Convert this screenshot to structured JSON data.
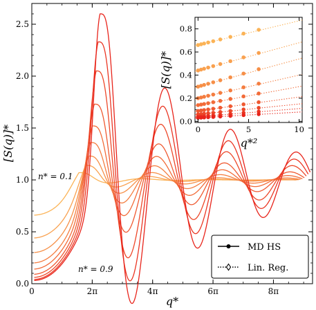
{
  "chart_data": [
    {
      "type": "line",
      "xlabel": "q*",
      "ylabel": "[S(q)]*",
      "xlim": [
        0,
        29.2
      ],
      "ylim": [
        0,
        2.7
      ],
      "xticks": [
        {
          "value": 0,
          "label": "0"
        },
        {
          "value": 6.2832,
          "label": "2π"
        },
        {
          "value": 12.5664,
          "label": "4π"
        },
        {
          "value": 18.8496,
          "label": "6π"
        },
        {
          "value": 25.1327,
          "label": "8π"
        }
      ],
      "yticks": [
        0,
        0.5,
        1.0,
        1.5,
        2.0,
        2.5
      ],
      "ytick_labels": [
        "0.0",
        "0.5",
        "1.0",
        "1.5",
        "2.0",
        "2.5"
      ],
      "colormap": {
        "low_density": "#fbb356",
        "high_density": "#e8231a"
      },
      "annotations": [
        {
          "text": "n* = 0.1",
          "color": "#f0a040"
        },
        {
          "text": "n* = 0.9",
          "color": "#e8231a"
        }
      ],
      "series": [
        {
          "density": 0.1,
          "s0": 0.66,
          "peak_q": 4.9,
          "peak_h": 1.07,
          "damp": 0.4,
          "end_q": 27.5
        },
        {
          "density": 0.2,
          "s0": 0.44,
          "peak_q": 5.6,
          "peak_h": 1.14,
          "damp": 0.3,
          "end_q": 27.6
        },
        {
          "density": 0.3,
          "s0": 0.3,
          "peak_q": 5.9,
          "peak_h": 1.23,
          "damp": 0.22,
          "end_q": 27.8
        },
        {
          "density": 0.4,
          "s0": 0.2,
          "peak_q": 6.1,
          "peak_h": 1.36,
          "damp": 0.16,
          "end_q": 28.0
        },
        {
          "density": 0.5,
          "s0": 0.14,
          "peak_q": 6.3,
          "peak_h": 1.52,
          "damp": 0.12,
          "end_q": 28.2
        },
        {
          "density": 0.6,
          "s0": 0.09,
          "peak_q": 6.5,
          "peak_h": 1.73,
          "damp": 0.095,
          "end_q": 28.4
        },
        {
          "density": 0.7,
          "s0": 0.06,
          "peak_q": 6.7,
          "peak_h": 2.05,
          "damp": 0.075,
          "end_q": 28.6
        },
        {
          "density": 0.8,
          "s0": 0.04,
          "peak_q": 6.9,
          "peak_h": 2.33,
          "damp": 0.062,
          "end_q": 28.8
        },
        {
          "density": 0.9,
          "s0": 0.03,
          "peak_q": 7.1,
          "peak_h": 2.6,
          "damp": 0.052,
          "end_q": 29.0
        }
      ],
      "inset": {
        "type": "scatter",
        "xlabel": "q*²",
        "ylabel": "[S(q)]*",
        "xlim": [
          -0.3,
          10.3
        ],
        "ylim": [
          -0.01,
          0.9
        ],
        "xticks": [
          0,
          5,
          10
        ],
        "xtick_labels": [
          "0",
          "5",
          "10"
        ],
        "yticks": [
          0.0,
          0.2,
          0.4,
          0.6,
          0.8
        ],
        "ytick_labels": [
          "0.0",
          "0.2",
          "0.4",
          "0.6",
          "0.8"
        ],
        "fits": [
          {
            "density": 0.1,
            "intercept": 0.66,
            "slope": 0.021
          },
          {
            "density": 0.2,
            "intercept": 0.44,
            "slope": 0.024
          },
          {
            "density": 0.3,
            "intercept": 0.3,
            "slope": 0.024
          },
          {
            "density": 0.4,
            "intercept": 0.2,
            "slope": 0.02
          },
          {
            "density": 0.5,
            "intercept": 0.14,
            "slope": 0.016
          },
          {
            "density": 0.6,
            "intercept": 0.09,
            "slope": 0.012
          },
          {
            "density": 0.7,
            "intercept": 0.06,
            "slope": 0.009
          },
          {
            "density": 0.8,
            "intercept": 0.04,
            "slope": 0.007
          },
          {
            "density": 0.9,
            "intercept": 0.03,
            "slope": 0.005
          }
        ],
        "point_x": [
          0.0,
          0.3,
          0.6,
          1.0,
          1.5,
          2.2,
          3.2,
          4.5,
          6.0
        ]
      },
      "legend": {
        "position": "lower-right",
        "entries": [
          {
            "label": "MD HS",
            "style": "solid-line-with-dot"
          },
          {
            "label": "Lin. Reg.",
            "style": "dotted-line-with-diamond"
          }
        ]
      }
    }
  ]
}
